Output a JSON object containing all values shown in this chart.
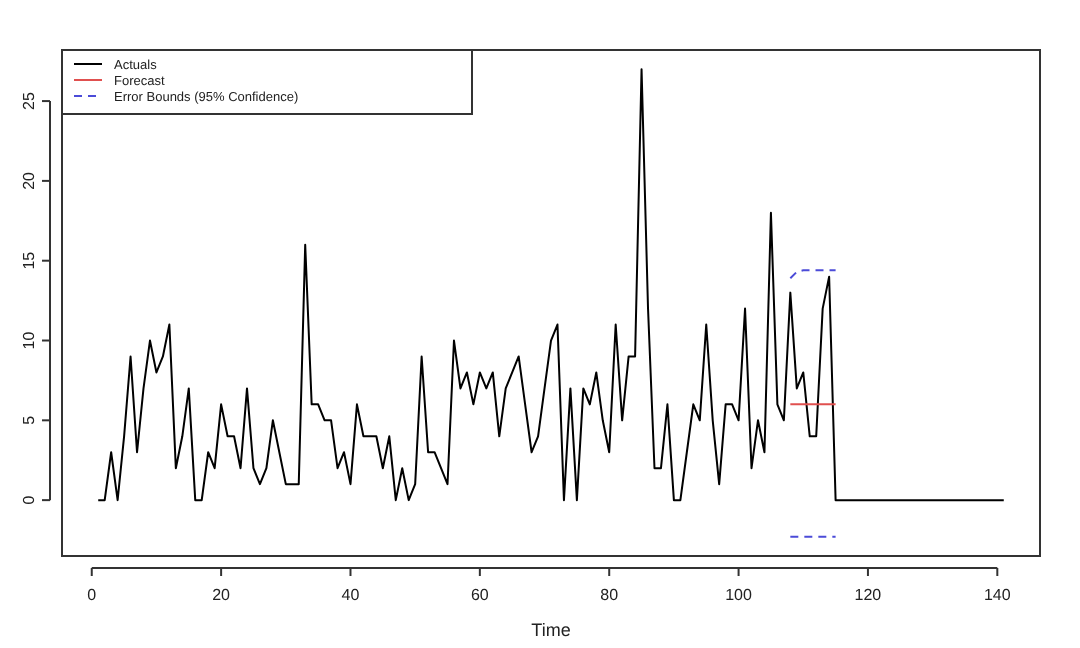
{
  "chart_data": {
    "type": "line",
    "xlabel": "Time",
    "xlim": [
      -4.6,
      146.6
    ],
    "ylim": [
      -3.5,
      28.2
    ],
    "xticks": [
      0,
      20,
      40,
      60,
      80,
      100,
      120,
      140
    ],
    "yticks": [
      0,
      5,
      10,
      15,
      20,
      25
    ],
    "grid": false,
    "legend": "top left",
    "x": [
      1,
      2,
      3,
      4,
      5,
      6,
      7,
      8,
      9,
      10,
      11,
      12,
      13,
      14,
      15,
      16,
      17,
      18,
      19,
      20,
      21,
      22,
      23,
      24,
      25,
      26,
      27,
      28,
      29,
      30,
      31,
      32,
      33,
      34,
      35,
      36,
      37,
      38,
      39,
      40,
      41,
      42,
      43,
      44,
      45,
      46,
      47,
      48,
      49,
      50,
      51,
      52,
      53,
      54,
      55,
      56,
      57,
      58,
      59,
      60,
      61,
      62,
      63,
      64,
      65,
      66,
      67,
      68,
      69,
      70,
      71,
      72,
      73,
      74,
      75,
      76,
      77,
      78,
      79,
      80,
      81,
      82,
      83,
      84,
      85,
      86,
      87,
      88,
      89,
      90,
      91,
      92,
      93,
      94,
      95,
      96,
      97,
      98,
      99,
      100,
      101,
      102,
      103,
      104,
      105,
      106,
      107,
      108,
      109,
      110,
      111,
      112,
      113,
      114,
      115,
      116,
      117,
      118,
      119,
      120,
      121,
      122,
      123,
      124,
      125,
      126,
      127,
      128,
      129,
      130,
      131,
      132,
      133,
      134,
      135,
      136,
      137,
      138,
      139,
      140,
      141
    ],
    "series": [
      {
        "name": "Actuals",
        "color": "#000000",
        "line_style": "solid",
        "values": [
          0,
          0,
          3,
          0,
          4,
          9,
          3,
          7,
          10,
          8,
          9,
          11,
          2,
          4,
          7,
          0,
          0,
          3,
          2,
          6,
          4,
          4,
          2,
          7,
          2,
          1,
          2,
          5,
          3,
          1,
          1,
          1,
          16,
          6,
          6,
          5,
          5,
          2,
          3,
          1,
          6,
          4,
          4,
          4,
          2,
          4,
          0,
          2,
          0,
          1,
          9,
          3,
          3,
          2,
          1,
          10,
          7,
          8,
          6,
          8,
          7,
          8,
          4,
          7,
          8,
          9,
          6,
          3,
          4,
          7,
          10,
          11,
          0,
          7,
          0,
          7,
          6,
          8,
          5,
          3,
          11,
          5,
          9,
          9,
          27,
          12,
          2,
          2,
          6,
          0,
          0,
          3,
          6,
          5,
          11,
          5,
          1,
          6,
          6,
          5,
          12,
          2,
          5,
          3,
          18,
          6,
          5,
          13,
          7,
          8,
          4,
          4,
          12,
          14,
          0,
          0,
          0,
          0,
          0,
          0,
          0,
          0,
          0,
          0,
          0,
          0,
          0,
          0,
          0,
          0,
          0,
          0,
          0,
          0,
          0,
          0,
          0,
          0,
          0,
          0,
          0
        ]
      },
      {
        "name": "Forecast",
        "color": "#e0504f",
        "line_style": "solid",
        "x": [
          108,
          115
        ],
        "values": [
          6,
          6
        ]
      },
      {
        "name": "Error Bounds (95% Confidence)",
        "color": "#4b4bd8",
        "line_style": "dashed",
        "x": [
          108,
          109,
          110,
          111,
          112,
          113,
          114,
          115
        ],
        "values": [
          13.9,
          14.3,
          14.4,
          14.4,
          14.4,
          14.4,
          14.4,
          14.4
        ]
      },
      {
        "color": "#4b4bd8",
        "line_style": "dashed",
        "x": [
          108,
          115
        ],
        "values": [
          -2.3,
          -2.3
        ]
      }
    ]
  }
}
